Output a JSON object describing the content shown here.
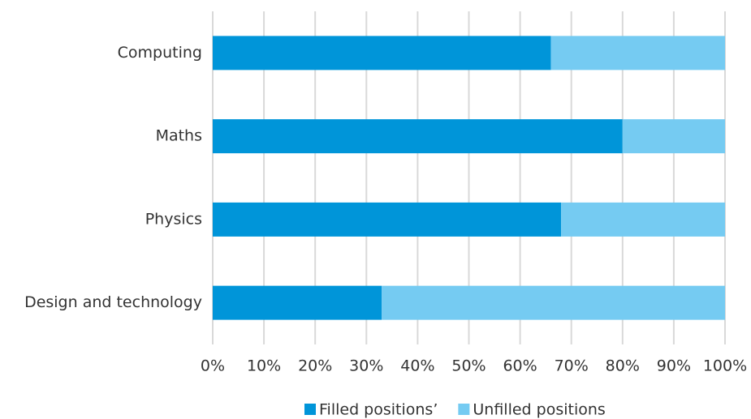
{
  "chart_data": {
    "type": "stacked_bar_horizontal",
    "categories": [
      "Computing",
      "Maths",
      "Physics",
      "Design and technology"
    ],
    "series": [
      {
        "name": "Filled positions’",
        "color": "#0095d9",
        "values": [
          66,
          80,
          68,
          33
        ]
      },
      {
        "name": "Unfilled positions",
        "color": "#75cbf2",
        "values": [
          34,
          20,
          32,
          67
        ]
      }
    ],
    "xlim": [
      0,
      100
    ],
    "xticks": [
      {
        "value": 0,
        "label": "0%"
      },
      {
        "value": 10,
        "label": "10%"
      },
      {
        "value": 20,
        "label": "20%"
      },
      {
        "value": 30,
        "label": "30%"
      },
      {
        "value": 40,
        "label": "40%"
      },
      {
        "value": 50,
        "label": "50%"
      },
      {
        "value": 60,
        "label": "60%"
      },
      {
        "value": 70,
        "label": "70%"
      },
      {
        "value": 80,
        "label": "80%"
      },
      {
        "value": 90,
        "label": "90%"
      },
      {
        "value": 100,
        "label": "100%"
      }
    ],
    "grid": true,
    "legend": "bottom"
  }
}
